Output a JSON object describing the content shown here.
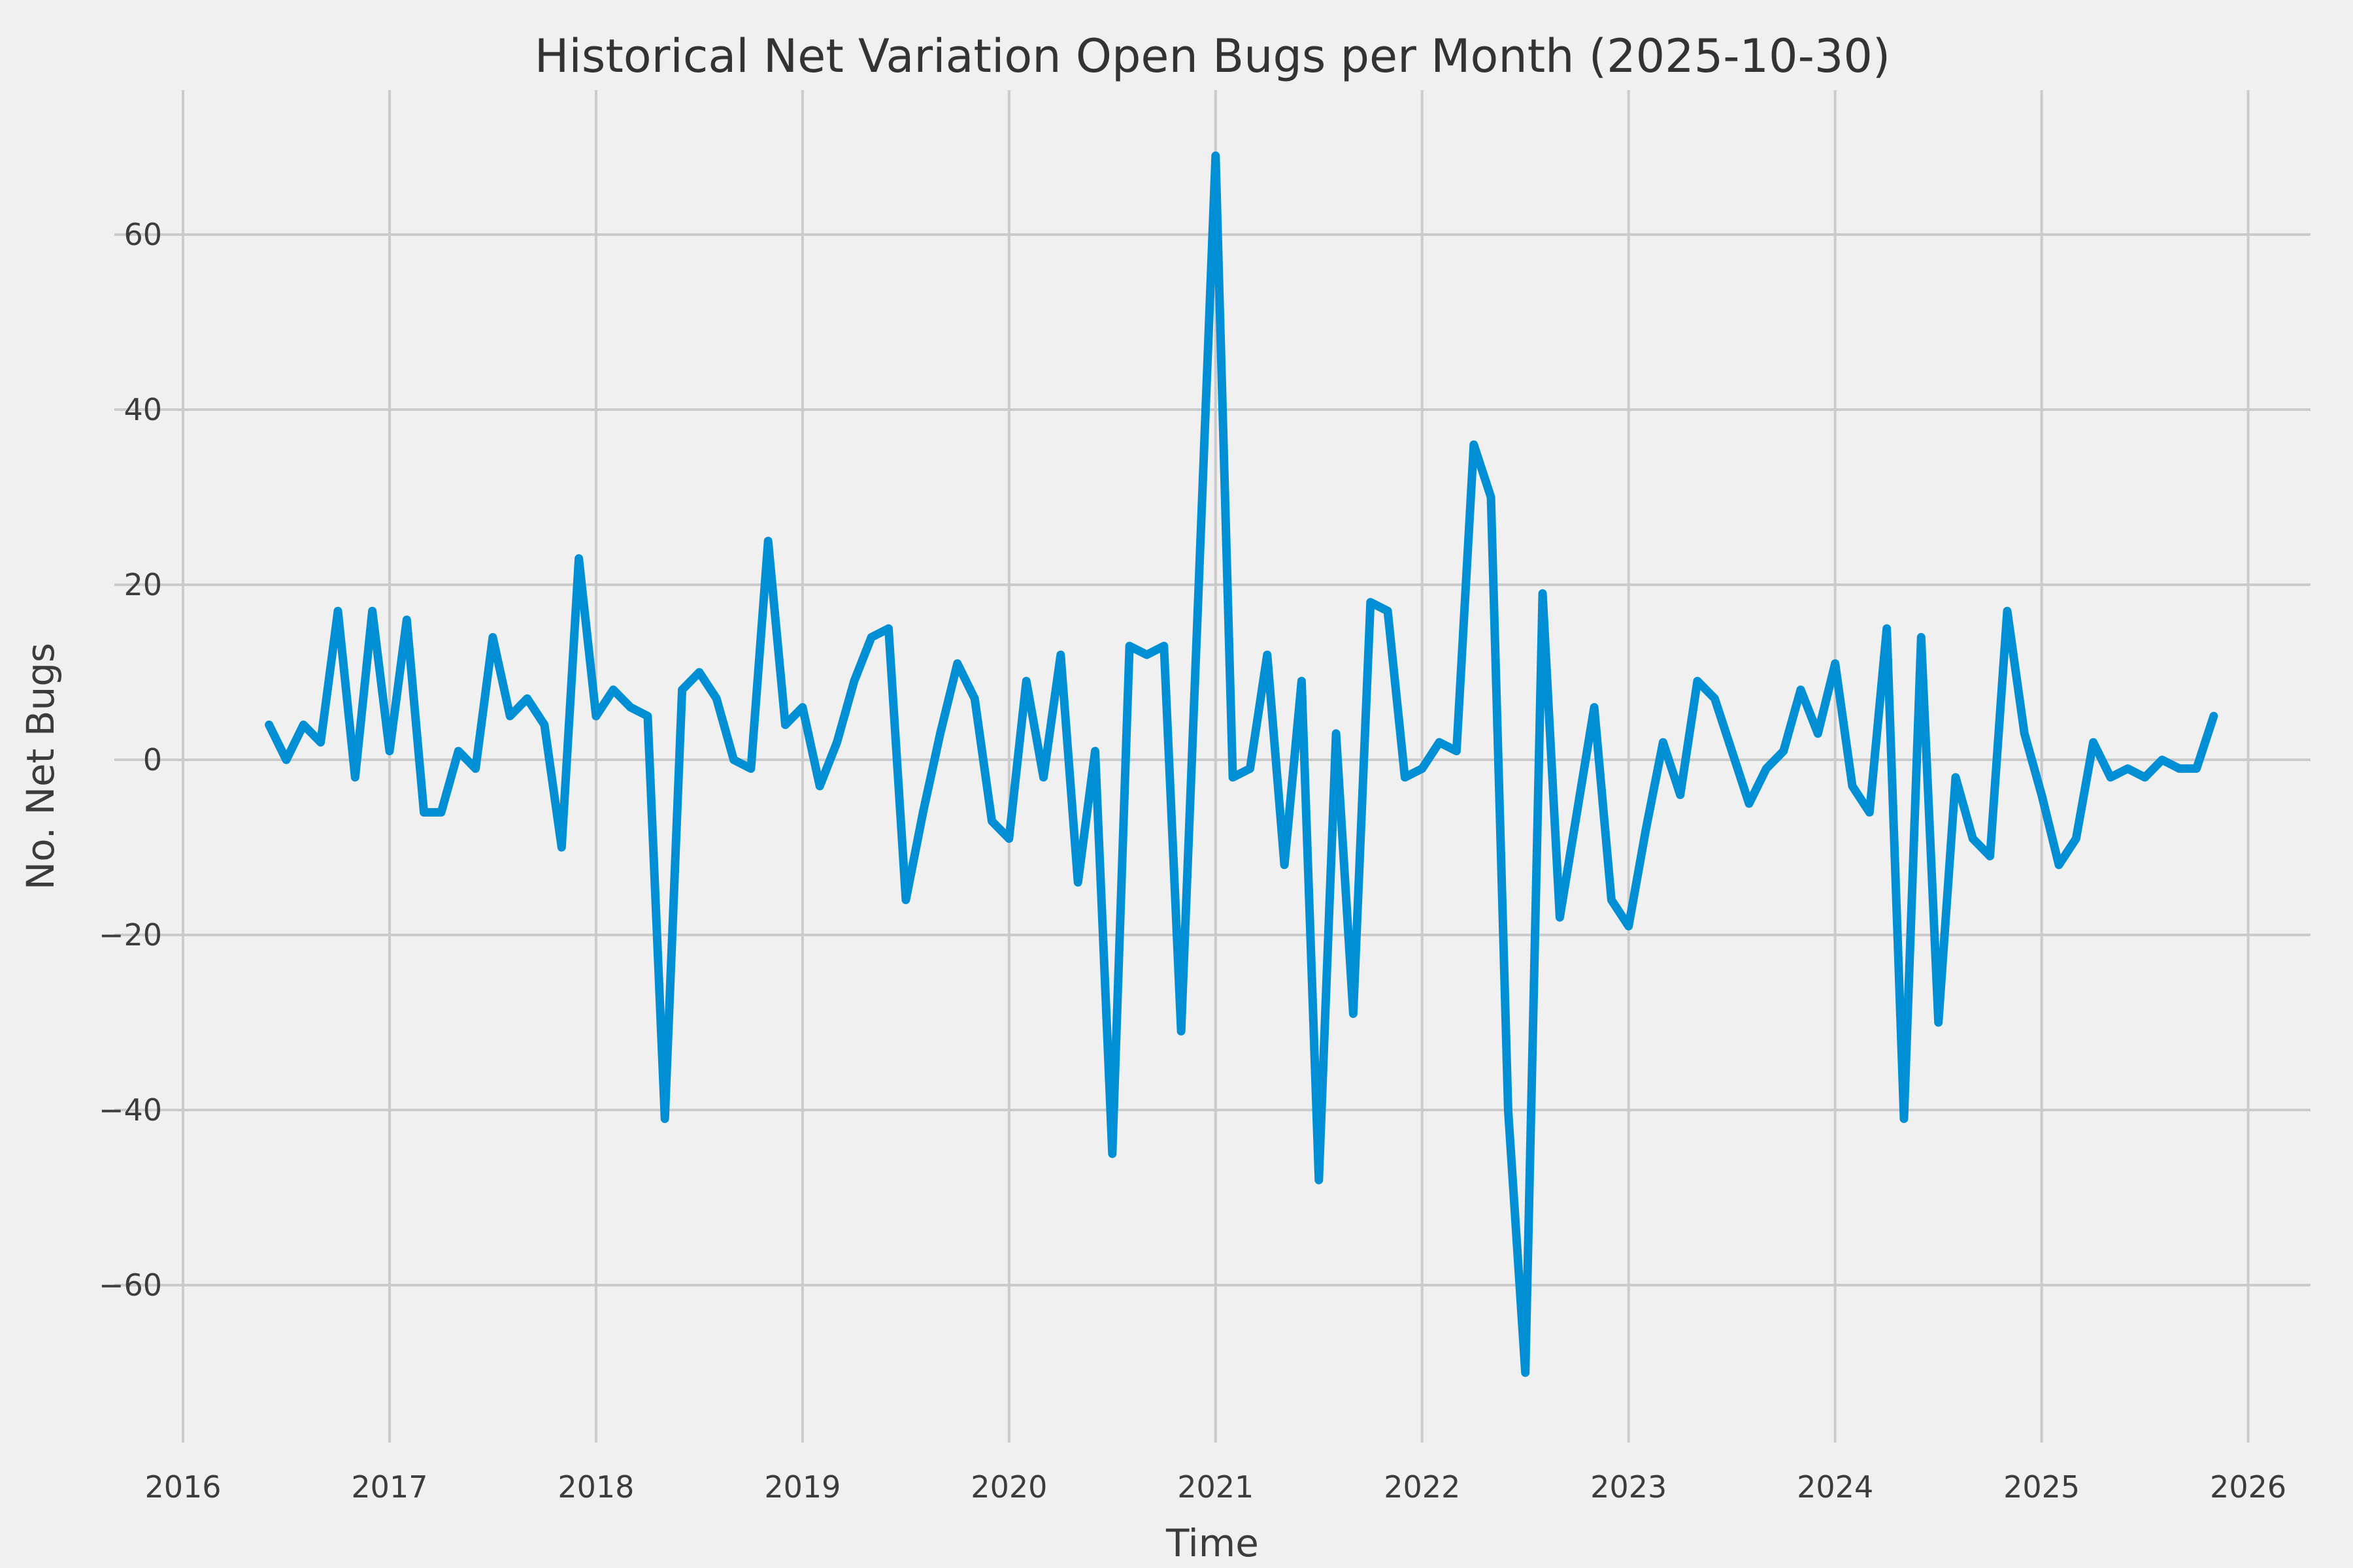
{
  "chart_data": {
    "type": "line",
    "title": "Historical Net Variation Open Bugs per Month (2025-10-30)",
    "xlabel": "Time",
    "ylabel": "No. Net Bugs",
    "legend": "none",
    "grid": "on",
    "x_tick_labels": [
      "2016",
      "2017",
      "2018",
      "2019",
      "2020",
      "2021",
      "2022",
      "2023",
      "2024",
      "2025",
      "2026"
    ],
    "y_tick_labels": [
      "60",
      "40",
      "20",
      "0",
      "−20",
      "−40",
      "−60"
    ],
    "y_tick_values": [
      60,
      40,
      20,
      0,
      -20,
      -40,
      -60
    ],
    "ylim": [
      -77,
      76
    ],
    "x_months": [
      "2016-05",
      "2016-06",
      "2016-07",
      "2016-08",
      "2016-09",
      "2016-10",
      "2016-11",
      "2016-12",
      "2017-01",
      "2017-02",
      "2017-03",
      "2017-04",
      "2017-05",
      "2017-06",
      "2017-07",
      "2017-08",
      "2017-09",
      "2017-10",
      "2017-11",
      "2017-12",
      "2018-01",
      "2018-02",
      "2018-03",
      "2018-04",
      "2018-05",
      "2018-06",
      "2018-07",
      "2018-08",
      "2018-09",
      "2018-10",
      "2018-11",
      "2018-12",
      "2019-01",
      "2019-02",
      "2019-03",
      "2019-04",
      "2019-05",
      "2019-06",
      "2019-07",
      "2019-08",
      "2019-09",
      "2019-10",
      "2019-11",
      "2019-12",
      "2020-01",
      "2020-02",
      "2020-03",
      "2020-04",
      "2020-05",
      "2020-06",
      "2020-07",
      "2020-08",
      "2020-09",
      "2020-10",
      "2020-11",
      "2020-12",
      "2021-01",
      "2021-02",
      "2021-03",
      "2021-04",
      "2021-05",
      "2021-06",
      "2021-07",
      "2021-08",
      "2021-09",
      "2021-10",
      "2021-11",
      "2021-12",
      "2022-01",
      "2022-02",
      "2022-03",
      "2022-04",
      "2022-05",
      "2022-06",
      "2022-07",
      "2022-08",
      "2022-09",
      "2022-10",
      "2022-11",
      "2022-12",
      "2023-01",
      "2023-02",
      "2023-03",
      "2023-04",
      "2023-05",
      "2023-06",
      "2023-07",
      "2023-08",
      "2023-09",
      "2023-10",
      "2023-11",
      "2023-12",
      "2024-01",
      "2024-02",
      "2024-03",
      "2024-04",
      "2024-05",
      "2024-06",
      "2024-07",
      "2024-08",
      "2024-09",
      "2024-10",
      "2024-11",
      "2024-12",
      "2025-01",
      "2025-02",
      "2025-03",
      "2025-04",
      "2025-05",
      "2025-06",
      "2025-07",
      "2025-08",
      "2025-09",
      "2025-10"
    ],
    "values": [
      4,
      0,
      4,
      2,
      17,
      -2,
      17,
      1,
      16,
      -6,
      -6,
      1,
      -1,
      14,
      5,
      7,
      4,
      -10,
      23,
      5,
      8,
      6,
      5,
      -41,
      8,
      10,
      7,
      0,
      -1,
      25,
      4,
      6,
      -3,
      2,
      9,
      14,
      15,
      -16,
      -6,
      3,
      11,
      7,
      -7,
      -9,
      9,
      -2,
      12,
      -14,
      1,
      -45,
      13,
      12,
      13,
      -31,
      19,
      69,
      -2,
      -1,
      12,
      -12,
      9,
      -48,
      3,
      -29,
      18,
      17,
      -2,
      -1,
      2,
      1,
      36,
      30,
      -40,
      -70,
      19,
      -18,
      -6,
      6,
      -16,
      -19,
      -8,
      2,
      -4,
      9,
      7,
      1,
      -5,
      -1,
      1,
      8,
      3,
      11,
      -3,
      -6,
      15,
      -41,
      14,
      -30,
      -2,
      -9,
      -11,
      17,
      3,
      -4,
      -12,
      -9,
      2,
      -2,
      -1,
      -2,
      0,
      -1,
      -1,
      5
    ],
    "colors": {
      "line": "#008fd5",
      "background": "#f0f0f0",
      "grid": "#cbcbcb",
      "text": "#3c3c3c"
    }
  }
}
